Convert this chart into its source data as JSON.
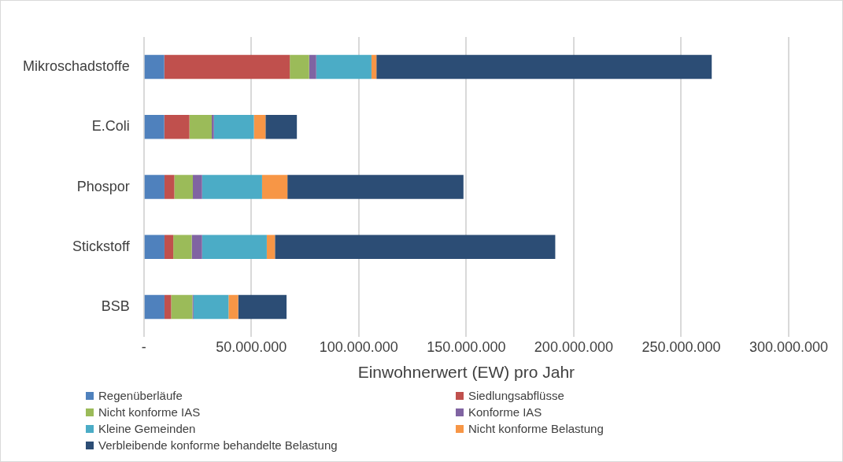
{
  "chart_data": {
    "type": "bar",
    "orientation": "horizontal",
    "stacked": true,
    "xlabel": "Einwohnerwert (EW) pro Jahr",
    "categories": [
      "Mikroschadstoffe",
      "E.Coli",
      "Phospor",
      "Stickstoff",
      "BSB"
    ],
    "series": [
      {
        "name": "Regenüberläufe",
        "color": "#4f81bd",
        "values": [
          9500000,
          9500000,
          9600000,
          9600000,
          9600000
        ]
      },
      {
        "name": "Siedlungsabflüsse",
        "color": "#c0504d",
        "values": [
          58400000,
          11700000,
          4600000,
          4100000,
          3100000
        ]
      },
      {
        "name": "Nicht konforme IAS",
        "color": "#9bbb59",
        "values": [
          9000000,
          10400000,
          8600000,
          8600000,
          9900000
        ]
      },
      {
        "name": "Konforme IAS",
        "color": "#8064a2",
        "values": [
          3300000,
          1000000,
          4300000,
          4800000,
          500000
        ]
      },
      {
        "name": "Kleine Gemeinden",
        "color": "#4bacc6",
        "values": [
          25700000,
          18600000,
          27900000,
          30100000,
          16300000
        ]
      },
      {
        "name": "Nicht konforme Belastung",
        "color": "#f79646",
        "values": [
          2300000,
          5400000,
          11800000,
          3800000,
          4500000
        ]
      },
      {
        "name": "Verbleibende konforme behandelte Belastung",
        "color": "#2c4d75",
        "values": [
          156000000,
          14600000,
          81900000,
          130400000,
          22500000
        ]
      }
    ],
    "xlim": [
      0,
      300000000
    ],
    "xticks": [
      {
        "value": 0,
        "label": "-"
      },
      {
        "value": 50000000,
        "label": "50.000.000"
      },
      {
        "value": 100000000,
        "label": "100.000.000"
      },
      {
        "value": 150000000,
        "label": "150.000.000"
      },
      {
        "value": 200000000,
        "label": "200.000.000"
      },
      {
        "value": 250000000,
        "label": "250.000.000"
      },
      {
        "value": 300000000,
        "label": "300.000.000"
      }
    ],
    "grid": "x",
    "legend": "bottom"
  }
}
